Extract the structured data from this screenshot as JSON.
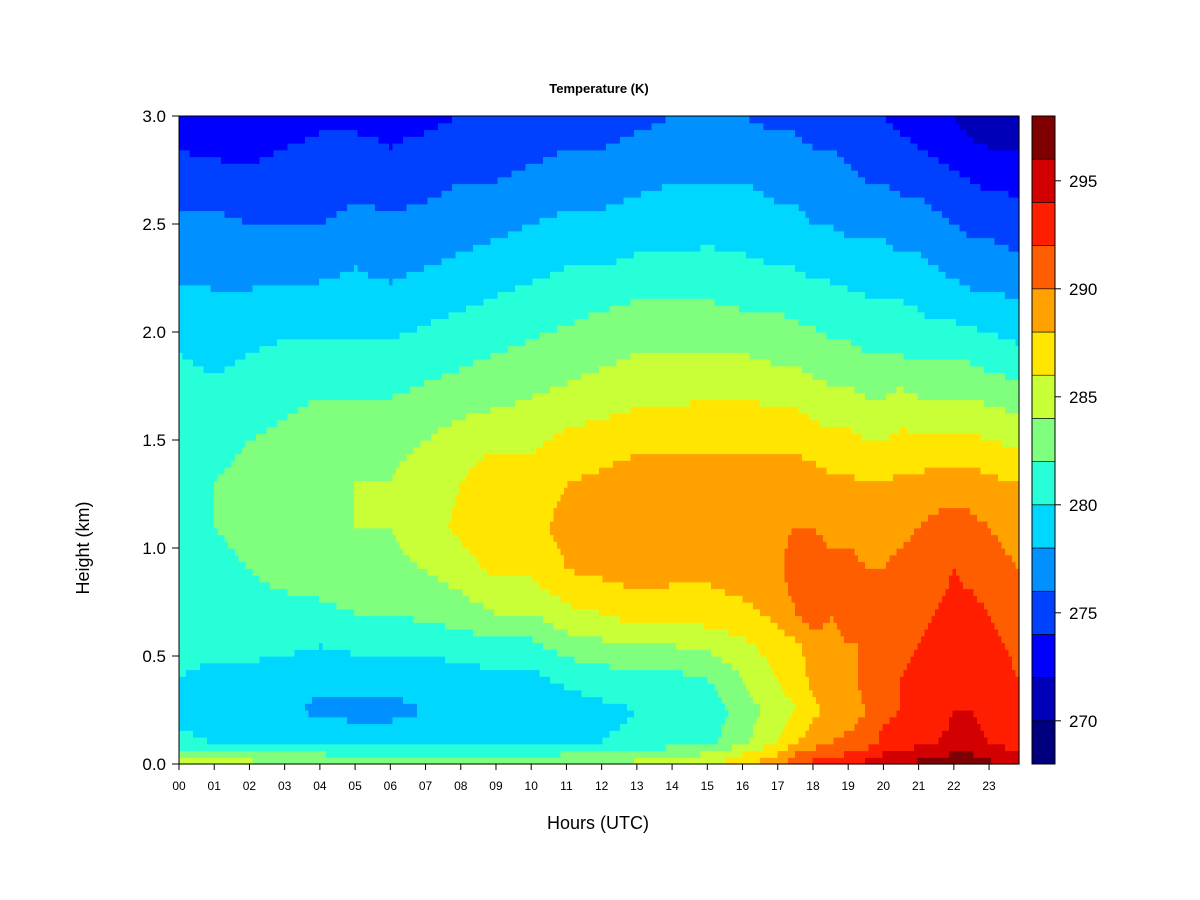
{
  "chart_data": {
    "type": "heatmap",
    "title": "Temperature (K)",
    "xlabel": "Hours (UTC)",
    "ylabel": "Height (km)",
    "xlim": [
      0,
      23.85
    ],
    "ylim": [
      0.0,
      3.0
    ],
    "x_ticks": [
      "00",
      "01",
      "02",
      "03",
      "04",
      "05",
      "06",
      "07",
      "08",
      "09",
      "10",
      "11",
      "12",
      "13",
      "14",
      "15",
      "16",
      "17",
      "18",
      "19",
      "20",
      "21",
      "22",
      "23"
    ],
    "y_ticks": [
      "0.0",
      "0.5",
      "1.0",
      "1.5",
      "2.0",
      "2.5",
      "3.0"
    ],
    "colorbar": {
      "range": [
        268,
        298
      ],
      "level_step": 2,
      "tick_labels": [
        "270",
        "275",
        "280",
        "285",
        "290",
        "295"
      ],
      "tick_values": [
        270,
        275,
        280,
        285,
        290,
        295
      ],
      "colors": [
        "#00007f",
        "#0000b8",
        "#0000ff",
        "#0041ff",
        "#0090ff",
        "#00d7ff",
        "#27ffd8",
        "#80ff7f",
        "#c8ff37",
        "#ffe500",
        "#ffa200",
        "#ff5e00",
        "#ff1e00",
        "#d20000",
        "#7f0000"
      ]
    },
    "grid": false,
    "legend_placement": "right (colorbar)",
    "heights_km": [
      0.0,
      0.05,
      0.1,
      0.25,
      0.4,
      0.55,
      0.7,
      0.9,
      1.1,
      1.3,
      1.5,
      1.7,
      1.9,
      2.1,
      2.3,
      2.5,
      2.7,
      2.85,
      3.0
    ],
    "hours_utc": [
      0,
      1,
      2,
      3,
      4,
      5,
      6,
      7,
      8,
      9,
      10,
      11,
      12,
      13,
      14,
      15,
      16,
      17,
      17.5,
      18,
      18.5,
      19,
      19.5,
      20,
      20.5,
      21,
      21.5,
      22,
      22.5,
      23,
      23.85
    ],
    "temperature_k": [
      [
        285.0,
        283.5,
        280.5,
        279.5,
        280.0,
        280.5,
        280.0,
        280.5,
        281.0,
        281.5,
        281.5,
        281.0,
        280.0,
        279.0,
        277.5,
        276.5,
        275.0,
        274.0,
        272.5
      ],
      [
        284.5,
        283.0,
        280.0,
        278.5,
        279.5,
        280.5,
        281.0,
        281.5,
        282.0,
        282.0,
        281.5,
        280.5,
        279.5,
        278.5,
        277.5,
        276.5,
        275.0,
        273.5,
        272.0
      ],
      [
        284.5,
        283.0,
        280.0,
        278.5,
        279.5,
        280.5,
        281.5,
        282.0,
        282.5,
        282.5,
        282.0,
        281.0,
        280.0,
        278.5,
        277.5,
        276.0,
        274.5,
        273.5,
        273.0
      ],
      [
        284.0,
        282.5,
        279.5,
        278.5,
        279.0,
        280.5,
        281.5,
        282.5,
        283.0,
        283.0,
        282.5,
        281.5,
        280.5,
        279.0,
        277.5,
        276.0,
        275.0,
        274.0,
        273.0
      ],
      [
        283.5,
        282.0,
        279.5,
        277.5,
        278.5,
        280.0,
        281.5,
        283.0,
        283.5,
        283.5,
        283.0,
        282.0,
        280.5,
        279.0,
        277.5,
        276.0,
        275.0,
        274.5,
        273.5
      ],
      [
        283.0,
        281.5,
        279.0,
        277.5,
        278.5,
        280.5,
        282.0,
        283.5,
        284.0,
        284.0,
        283.5,
        282.0,
        280.5,
        279.0,
        278.0,
        276.5,
        275.5,
        274.5,
        273.5
      ],
      [
        283.0,
        281.5,
        279.0,
        277.5,
        278.5,
        280.5,
        282.0,
        283.5,
        284.0,
        284.0,
        283.5,
        282.0,
        280.5,
        279.0,
        277.5,
        276.5,
        275.0,
        274.0,
        273.5
      ],
      [
        283.0,
        281.5,
        279.0,
        278.0,
        279.0,
        280.5,
        282.5,
        284.0,
        285.0,
        285.0,
        284.0,
        282.5,
        281.0,
        279.5,
        278.0,
        276.5,
        275.5,
        274.5,
        273.5
      ],
      [
        283.0,
        281.5,
        279.0,
        278.0,
        279.0,
        281.0,
        283.0,
        285.0,
        286.5,
        286.0,
        285.0,
        283.0,
        281.5,
        280.0,
        278.5,
        277.0,
        276.0,
        275.0,
        274.0
      ],
      [
        283.0,
        281.5,
        279.0,
        278.5,
        279.5,
        281.5,
        284.0,
        286.5,
        288.0,
        287.5,
        285.5,
        283.5,
        282.0,
        280.5,
        279.0,
        277.5,
        276.0,
        275.0,
        274.0
      ],
      [
        283.0,
        281.5,
        279.0,
        278.5,
        279.5,
        281.5,
        284.0,
        286.5,
        287.5,
        287.0,
        285.5,
        284.0,
        282.5,
        281.0,
        279.5,
        278.0,
        276.5,
        275.5,
        274.5
      ],
      [
        283.5,
        282.0,
        279.5,
        279.0,
        280.5,
        283.0,
        285.5,
        288.0,
        288.5,
        288.0,
        286.5,
        284.5,
        283.0,
        281.5,
        280.0,
        278.5,
        277.0,
        276.0,
        275.0
      ],
      [
        284.0,
        282.5,
        280.0,
        279.5,
        281.0,
        283.5,
        286.0,
        288.5,
        289.5,
        288.5,
        287.0,
        285.0,
        283.5,
        282.0,
        280.0,
        278.5,
        277.0,
        276.0,
        275.0
      ],
      [
        284.5,
        283.0,
        280.5,
        280.0,
        281.5,
        284.0,
        287.0,
        289.0,
        289.5,
        289.0,
        287.5,
        285.5,
        284.0,
        282.5,
        280.5,
        279.0,
        277.5,
        276.5,
        275.5
      ],
      [
        285.0,
        283.5,
        281.0,
        280.0,
        281.5,
        284.0,
        287.0,
        288.5,
        289.5,
        289.0,
        287.5,
        285.5,
        284.0,
        282.5,
        280.5,
        279.0,
        278.0,
        277.0,
        276.0
      ],
      [
        285.5,
        284.0,
        281.5,
        280.5,
        282.0,
        284.5,
        287.0,
        288.5,
        289.0,
        289.0,
        287.5,
        286.0,
        284.0,
        282.5,
        280.5,
        279.5,
        278.0,
        277.0,
        276.0
      ],
      [
        287.5,
        286.0,
        283.5,
        283.0,
        284.0,
        285.5,
        287.5,
        289.0,
        289.0,
        289.0,
        287.5,
        286.0,
        284.0,
        282.0,
        280.5,
        279.0,
        278.0,
        277.0,
        276.0
      ],
      [
        289.5,
        288.0,
        286.0,
        285.0,
        286.0,
        287.0,
        288.5,
        289.5,
        289.5,
        289.0,
        287.5,
        285.5,
        283.5,
        282.0,
        280.0,
        278.5,
        277.5,
        276.5,
        275.5
      ],
      [
        291.5,
        290.0,
        288.0,
        286.0,
        287.0,
        287.5,
        290.0,
        291.0,
        290.0,
        289.0,
        287.5,
        285.5,
        283.5,
        281.5,
        280.0,
        278.5,
        277.5,
        276.5,
        275.5
      ],
      [
        292.5,
        291.0,
        289.0,
        287.5,
        288.5,
        289.0,
        291.0,
        291.0,
        290.0,
        289.0,
        287.0,
        285.0,
        283.0,
        281.5,
        279.5,
        278.0,
        277.0,
        276.0,
        275.0
      ],
      [
        293.0,
        291.5,
        290.0,
        288.5,
        289.0,
        289.5,
        290.0,
        290.5,
        289.5,
        288.5,
        286.5,
        284.5,
        282.5,
        281.0,
        279.5,
        278.0,
        277.0,
        276.0,
        275.0
      ],
      [
        293.5,
        292.0,
        290.5,
        289.0,
        289.5,
        290.0,
        290.5,
        290.5,
        289.5,
        288.5,
        286.5,
        284.5,
        282.5,
        281.0,
        279.0,
        277.5,
        276.5,
        275.5,
        274.5
      ],
      [
        294.5,
        293.0,
        291.0,
        290.0,
        290.5,
        290.0,
        290.5,
        290.0,
        289.5,
        288.0,
        286.0,
        284.0,
        282.0,
        280.5,
        279.0,
        277.5,
        276.0,
        275.0,
        274.5
      ],
      [
        295.5,
        294.0,
        292.5,
        291.5,
        291.0,
        291.0,
        290.5,
        290.0,
        289.5,
        288.0,
        286.0,
        284.0,
        282.0,
        280.5,
        279.0,
        277.5,
        276.0,
        275.0,
        274.0
      ],
      [
        296.0,
        294.5,
        293.0,
        292.0,
        292.0,
        291.5,
        291.0,
        290.5,
        289.5,
        288.5,
        286.5,
        284.5,
        282.0,
        280.5,
        278.5,
        277.0,
        275.5,
        274.5,
        273.5
      ],
      [
        296.5,
        295.0,
        293.5,
        292.5,
        292.5,
        292.0,
        291.5,
        291.0,
        290.0,
        288.5,
        286.5,
        284.0,
        281.5,
        280.0,
        278.5,
        277.0,
        275.5,
        274.0,
        273.0
      ],
      [
        297.0,
        295.5,
        294.0,
        293.0,
        293.0,
        292.5,
        292.0,
        291.5,
        290.5,
        289.0,
        286.5,
        284.0,
        281.5,
        279.5,
        278.0,
        276.5,
        275.0,
        273.5,
        272.5
      ],
      [
        297.5,
        296.0,
        294.5,
        294.0,
        293.5,
        293.0,
        292.5,
        292.0,
        291.0,
        289.0,
        286.5,
        284.0,
        281.5,
        279.5,
        277.5,
        276.0,
        274.5,
        273.0,
        272.0
      ],
      [
        297.5,
        296.0,
        294.5,
        294.0,
        293.5,
        293.0,
        292.5,
        291.5,
        290.5,
        289.0,
        286.5,
        284.0,
        281.5,
        279.0,
        277.0,
        275.5,
        274.0,
        272.5,
        271.0
      ],
      [
        296.5,
        295.5,
        294.0,
        293.5,
        293.0,
        292.5,
        292.0,
        291.0,
        290.0,
        288.5,
        286.0,
        283.5,
        281.0,
        279.0,
        277.0,
        275.5,
        273.5,
        272.0,
        270.5
      ],
      [
        294.5,
        294.0,
        293.0,
        292.5,
        292.0,
        291.5,
        291.0,
        290.0,
        289.0,
        288.0,
        285.5,
        283.0,
        280.5,
        278.5,
        276.5,
        275.0,
        273.5,
        272.0,
        270.5
      ]
    ]
  }
}
